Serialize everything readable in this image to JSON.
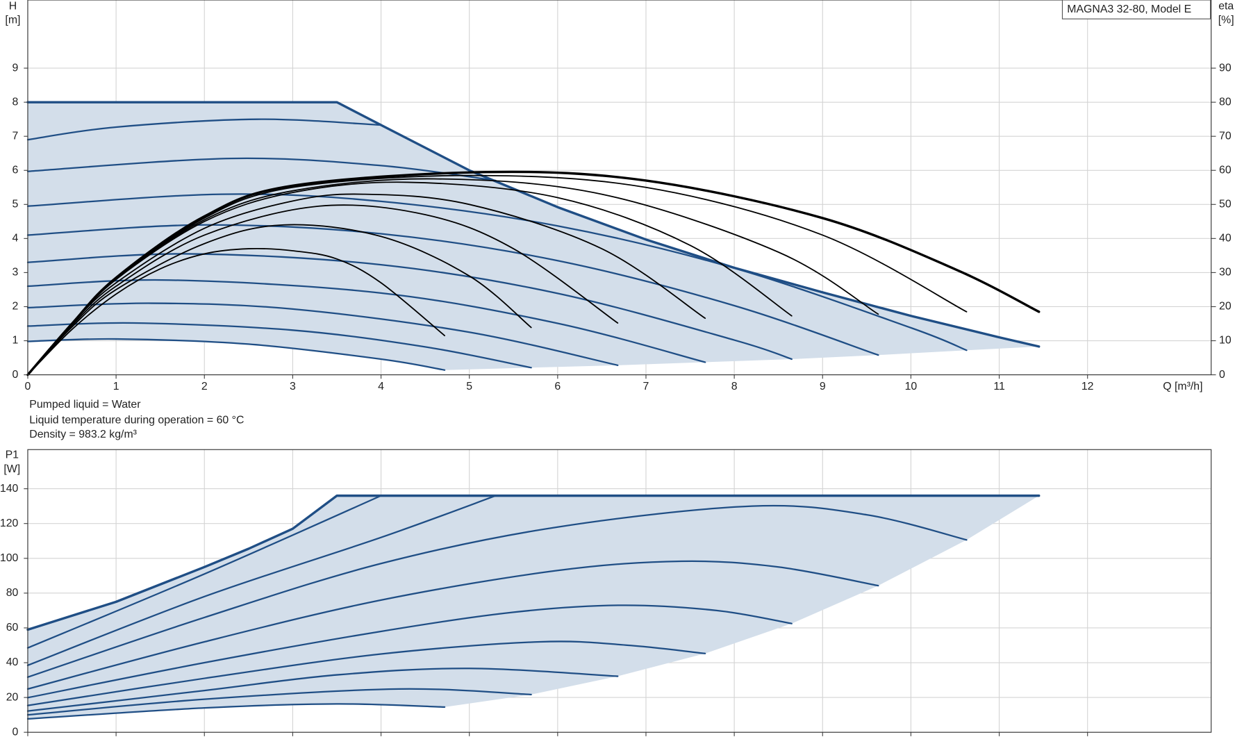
{
  "chart_data": [
    {
      "type": "line",
      "ylabel": "H",
      "yunit": "[m]",
      "y2label": "eta",
      "y2unit": "[%]",
      "xlabel": "Q [m³/h]",
      "legend": "MAGNA3 32-80, Model E",
      "notes": [
        "Pumped liquid = Water",
        "Liquid temperature during operation = 60 °C",
        "Density = 983.2 kg/m³"
      ],
      "xlim": [
        0,
        13.4
      ],
      "xticks": [
        0,
        1,
        2,
        3,
        4,
        5,
        6,
        7,
        8,
        9,
        10,
        11,
        12
      ],
      "xtick_labels": true,
      "ylim": [
        0,
        11
      ],
      "yticks": [
        0,
        1,
        2,
        3,
        4,
        5,
        6,
        7,
        8,
        9
      ],
      "y2lim": [
        0,
        110
      ],
      "y2ticks": [
        0,
        10,
        20,
        30,
        40,
        50,
        60,
        70,
        80,
        90
      ],
      "grid": true,
      "fill": "#d3deea",
      "series": [
        {
          "color": "#1f4e85",
          "width": 3,
          "smooth": false,
          "x": [
            0,
            3.5,
            4,
            5,
            6,
            7,
            8,
            9,
            10,
            11,
            11.45
          ],
          "values": [
            8,
            8,
            7.33,
            6.0,
            4.92,
            3.97,
            3.14,
            2.42,
            1.73,
            1.1,
            0.83
          ]
        },
        {
          "color": "#1f4e85",
          "width": 2,
          "x": [
            0,
            2.2,
            4,
            6,
            8,
            10,
            10.63
          ],
          "values": [
            4.95,
            5.3,
            5.09,
            4.37,
            3.13,
            1.38,
            0.72
          ]
        },
        {
          "color": "#1f4e85",
          "width": 2,
          "x": [
            0,
            2,
            4,
            6,
            8,
            9.63
          ],
          "values": [
            4.1,
            4.4,
            4.14,
            3.35,
            2.03,
            0.58
          ]
        },
        {
          "color": "#1f4e85",
          "width": 2,
          "x": [
            0,
            1.8,
            4,
            6,
            8,
            8.65
          ],
          "values": [
            3.3,
            3.55,
            3.23,
            2.39,
            1.02,
            0.46
          ]
        },
        {
          "color": "#1f4e85",
          "width": 2,
          "x": [
            0,
            1.6,
            4,
            6,
            7.67
          ],
          "values": [
            2.6,
            2.78,
            2.4,
            1.51,
            0.37
          ]
        },
        {
          "color": "#1f4e85",
          "width": 2,
          "x": [
            0,
            1.4,
            3,
            5,
            6.68
          ],
          "values": [
            1.97,
            2.1,
            1.93,
            1.25,
            0.28
          ]
        },
        {
          "color": "#1f4e85",
          "width": 2,
          "x": [
            0,
            1.2,
            3,
            4.5,
            5.7
          ],
          "values": [
            1.43,
            1.52,
            1.31,
            0.82,
            0.21
          ]
        },
        {
          "color": "#1f4e85",
          "width": 2,
          "x": [
            0,
            1,
            2.5,
            4,
            4.72
          ],
          "values": [
            0.98,
            1.05,
            0.9,
            0.46,
            0.14
          ]
        },
        {
          "color": "#1f4e85",
          "width": 2,
          "x": [
            0,
            1,
            2.6,
            4
          ],
          "values": [
            6.9,
            7.27,
            7.5,
            7.33
          ]
        },
        {
          "color": "#1f4e85",
          "width": 2,
          "x": [
            0,
            2.3,
            4,
            5.3
          ],
          "values": [
            5.97,
            6.35,
            6.14,
            5.7
          ]
        },
        {
          "color": "#000000",
          "width": 1.6,
          "axis": "y2",
          "x": [
            0,
            0.5,
            1,
            1.5,
            2,
            2.5,
            3,
            3.5,
            4,
            4.72
          ],
          "values": [
            0,
            13.3,
            23.7,
            31.1,
            35.5,
            37,
            36.4,
            34,
            27,
            11.5
          ]
        },
        {
          "color": "#000000",
          "width": 1.6,
          "axis": "y2",
          "x": [
            0,
            0.5,
            1,
            2,
            2.9,
            4,
            5,
            5.7
          ],
          "values": [
            0,
            14,
            25,
            38.5,
            44,
            40.6,
            29,
            13.9
          ]
        },
        {
          "color": "#000000",
          "width": 1.6,
          "axis": "y2",
          "x": [
            0,
            0.5,
            1,
            2,
            3.3,
            4.5,
            5.5,
            6.68
          ],
          "values": [
            0,
            14.5,
            26,
            41,
            49.5,
            47,
            37,
            15.2
          ]
        },
        {
          "color": "#000000",
          "width": 1.6,
          "axis": "y2",
          "x": [
            0,
            0.5,
            1,
            2,
            3,
            3.8,
            5,
            6.5,
            7.67
          ],
          "values": [
            0,
            15,
            27,
            43,
            51,
            53,
            50,
            37,
            16.6
          ]
        },
        {
          "color": "#000000",
          "width": 1.6,
          "axis": "y2",
          "x": [
            0,
            0.5,
            1,
            2,
            3,
            4.3,
            6,
            7.5,
            8.65
          ],
          "values": [
            0,
            15,
            28,
            45,
            53.5,
            56.5,
            52,
            38,
            17.3
          ]
        },
        {
          "color": "#000000",
          "width": 1.6,
          "axis": "y2",
          "x": [
            0,
            0.5,
            1,
            2,
            3,
            4.6,
            6.5,
            8.5,
            9.63
          ],
          "values": [
            0,
            15,
            28,
            45.5,
            54,
            57.5,
            53,
            36,
            17.8
          ]
        },
        {
          "color": "#000000",
          "width": 1.6,
          "axis": "y2",
          "x": [
            0,
            0.5,
            1,
            2,
            3,
            5,
            7,
            9,
            10.63
          ],
          "values": [
            0,
            15,
            28,
            46,
            55,
            58.5,
            55,
            41,
            18.5
          ]
        },
        {
          "color": "#000000",
          "width": 3,
          "axis": "y2",
          "x": [
            0,
            0.5,
            1,
            2,
            3,
            5.2,
            7,
            9,
            10.5,
            11.45
          ],
          "values": [
            0,
            15,
            28.5,
            46.5,
            55.5,
            59.5,
            57,
            46,
            31,
            18.5
          ]
        }
      ]
    },
    {
      "type": "line",
      "ylabel": "P1",
      "yunit": "[W]",
      "xlim": [
        0,
        13.4
      ],
      "xticks": [
        0,
        1,
        2,
        3,
        4,
        5,
        6,
        7,
        8,
        9,
        10,
        11,
        12
      ],
      "xtick_labels": false,
      "ylim": [
        0,
        162.5
      ],
      "yticks": [
        0,
        20,
        40,
        60,
        80,
        100,
        120,
        140
      ],
      "grid": true,
      "fill": "#d3deea",
      "series": [
        {
          "color": "#1f4e85",
          "width": 3,
          "smooth": false,
          "x": [
            0,
            1,
            2,
            2.5,
            3,
            3.5,
            11.45
          ],
          "values": [
            59,
            75,
            95,
            105.5,
            117,
            136,
            136
          ]
        },
        {
          "color": "#1f4e85",
          "width": 2,
          "x": [
            0,
            2,
            4
          ],
          "values": [
            48.5,
            91,
            136
          ]
        },
        {
          "color": "#1f4e85",
          "width": 2,
          "x": [
            0,
            2,
            4,
            5.3
          ],
          "values": [
            38.5,
            78,
            112,
            136
          ]
        },
        {
          "color": "#1f4e85",
          "width": 2,
          "x": [
            0,
            2,
            4,
            6,
            8.2,
            9.5,
            10.63
          ],
          "values": [
            31.7,
            66,
            97,
            118,
            130,
            125,
            110.6
          ]
        },
        {
          "color": "#1f4e85",
          "width": 2,
          "x": [
            0,
            2,
            4,
            6,
            7.4,
            8.5,
            9.63
          ],
          "values": [
            24.9,
            52,
            76,
            93,
            98.3,
            95,
            84.3
          ]
        },
        {
          "color": "#1f4e85",
          "width": 2,
          "x": [
            0,
            2,
            4,
            5.5,
            6.7,
            7.8,
            8.65
          ],
          "values": [
            19.9,
            40,
            58,
            69,
            73,
            70,
            62.5
          ]
        },
        {
          "color": "#1f4e85",
          "width": 2,
          "x": [
            0,
            2,
            4,
            5.8,
            6.8,
            7.67
          ],
          "values": [
            15.4,
            31,
            45,
            52,
            50,
            45.3
          ]
        },
        {
          "color": "#1f4e85",
          "width": 2,
          "x": [
            0,
            2,
            3.5,
            5,
            6.68
          ],
          "values": [
            12.2,
            24,
            33,
            36.7,
            32.2
          ]
        },
        {
          "color": "#1f4e85",
          "width": 2,
          "x": [
            0,
            2,
            4.2,
            5.7
          ],
          "values": [
            10,
            19,
            24.9,
            21.7
          ]
        },
        {
          "color": "#1f4e85",
          "width": 2,
          "x": [
            0,
            2,
            3.5,
            4.72
          ],
          "values": [
            7.7,
            14,
            16.3,
            14.5
          ]
        }
      ]
    }
  ]
}
